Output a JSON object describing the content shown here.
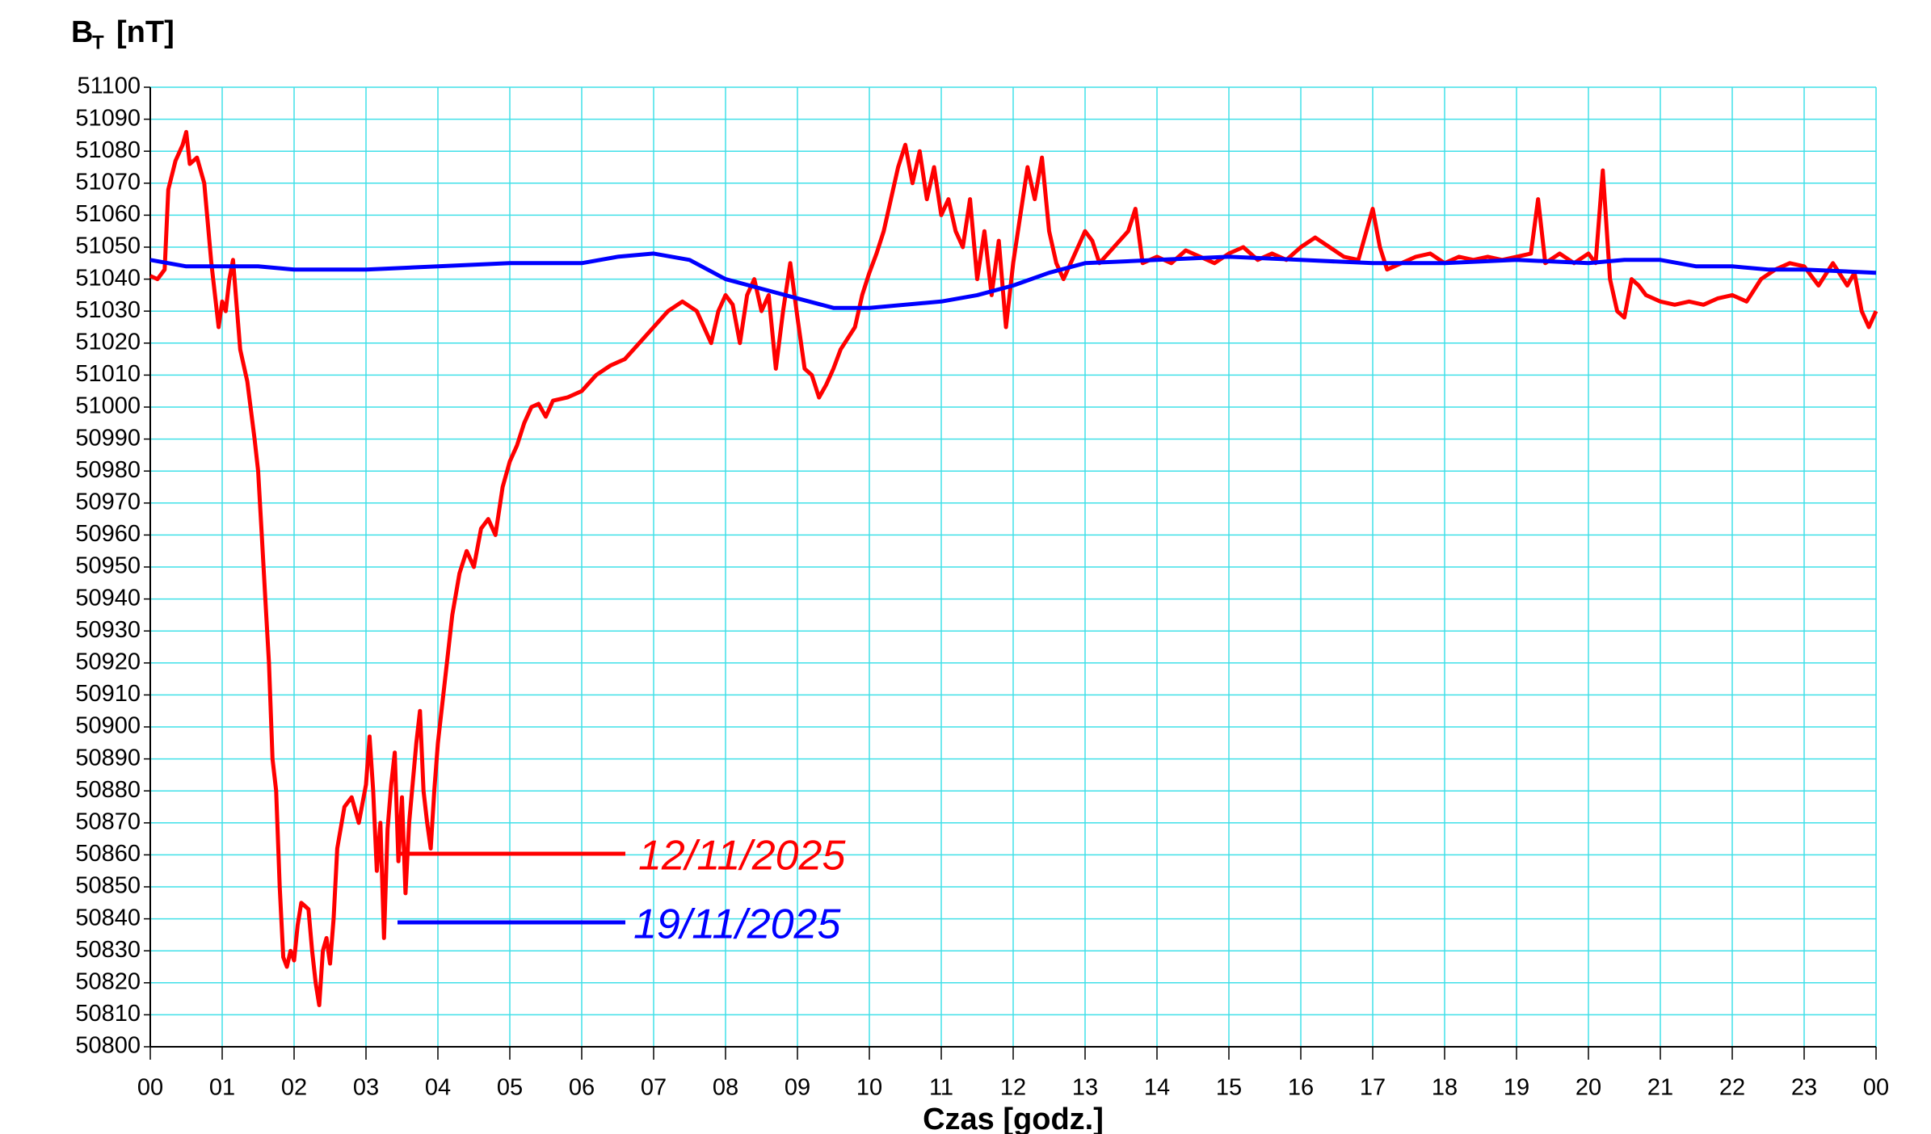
{
  "chart_data": {
    "type": "line",
    "y_label": "B",
    "y_label_subscript": "T",
    "y_label_unit": "[nT]",
    "x_label": "Czas [godz.]",
    "xlim": [
      0,
      24
    ],
    "ylim": [
      50800,
      51100
    ],
    "xticks": [
      {
        "value": 0,
        "label": "00"
      },
      {
        "value": 1,
        "label": "01"
      },
      {
        "value": 2,
        "label": "02"
      },
      {
        "value": 3,
        "label": "03"
      },
      {
        "value": 4,
        "label": "04"
      },
      {
        "value": 5,
        "label": "05"
      },
      {
        "value": 6,
        "label": "06"
      },
      {
        "value": 7,
        "label": "07"
      },
      {
        "value": 8,
        "label": "08"
      },
      {
        "value": 9,
        "label": "09"
      },
      {
        "value": 10,
        "label": "10"
      },
      {
        "value": 11,
        "label": "11"
      },
      {
        "value": 12,
        "label": "12"
      },
      {
        "value": 13,
        "label": "13"
      },
      {
        "value": 14,
        "label": "14"
      },
      {
        "value": 15,
        "label": "15"
      },
      {
        "value": 16,
        "label": "16"
      },
      {
        "value": 17,
        "label": "17"
      },
      {
        "value": 18,
        "label": "18"
      },
      {
        "value": 19,
        "label": "19"
      },
      {
        "value": 20,
        "label": "20"
      },
      {
        "value": 21,
        "label": "21"
      },
      {
        "value": 22,
        "label": "22"
      },
      {
        "value": 23,
        "label": "23"
      },
      {
        "value": 24,
        "label": "00"
      }
    ],
    "yticks": [
      50800,
      50810,
      50820,
      50830,
      50840,
      50850,
      50860,
      50870,
      50880,
      50890,
      50900,
      50910,
      50920,
      50930,
      50940,
      50950,
      50960,
      50970,
      50980,
      50990,
      51000,
      51010,
      51020,
      51030,
      51040,
      51050,
      51060,
      51070,
      51080,
      51090,
      51100
    ],
    "grid": true,
    "grid_color": "#40e0e8",
    "series": [
      {
        "name": "12/11/2025",
        "color": "#ff0000",
        "x": [
          0,
          0.1,
          0.2,
          0.25,
          0.35,
          0.45,
          0.5,
          0.55,
          0.65,
          0.75,
          0.85,
          0.95,
          1.0,
          1.05,
          1.1,
          1.15,
          1.25,
          1.35,
          1.45,
          1.5,
          1.55,
          1.6,
          1.65,
          1.7,
          1.75,
          1.8,
          1.85,
          1.9,
          1.95,
          2.0,
          2.05,
          2.1,
          2.2,
          2.25,
          2.3,
          2.35,
          2.4,
          2.45,
          2.5,
          2.55,
          2.6,
          2.7,
          2.8,
          2.9,
          3.0,
          3.05,
          3.1,
          3.15,
          3.2,
          3.25,
          3.3,
          3.35,
          3.4,
          3.45,
          3.5,
          3.55,
          3.6,
          3.7,
          3.75,
          3.8,
          3.85,
          3.9,
          3.95,
          4.0,
          4.1,
          4.2,
          4.3,
          4.4,
          4.5,
          4.6,
          4.7,
          4.8,
          4.9,
          5.0,
          5.1,
          5.2,
          5.3,
          5.4,
          5.5,
          5.6,
          5.8,
          6.0,
          6.2,
          6.4,
          6.6,
          6.8,
          7.0,
          7.2,
          7.4,
          7.6,
          7.8,
          7.9,
          8.0,
          8.1,
          8.2,
          8.3,
          8.4,
          8.5,
          8.6,
          8.7,
          8.8,
          8.9,
          9.0,
          9.1,
          9.2,
          9.3,
          9.4,
          9.5,
          9.6,
          9.8,
          9.9,
          10.0,
          10.1,
          10.2,
          10.3,
          10.4,
          10.5,
          10.6,
          10.7,
          10.8,
          10.9,
          11.0,
          11.1,
          11.2,
          11.3,
          11.4,
          11.5,
          11.6,
          11.7,
          11.8,
          11.9,
          12.0,
          12.1,
          12.2,
          12.3,
          12.4,
          12.5,
          12.6,
          12.7,
          12.8,
          12.9,
          13.0,
          13.1,
          13.2,
          13.4,
          13.6,
          13.7,
          13.8,
          14.0,
          14.2,
          14.4,
          14.6,
          14.8,
          15.0,
          15.2,
          15.4,
          15.6,
          15.8,
          16.0,
          16.2,
          16.4,
          16.6,
          16.8,
          17.0,
          17.1,
          17.2,
          17.4,
          17.6,
          17.8,
          18.0,
          18.2,
          18.4,
          18.6,
          18.8,
          19.0,
          19.2,
          19.3,
          19.4,
          19.6,
          19.8,
          20.0,
          20.1,
          20.2,
          20.3,
          20.4,
          20.5,
          20.6,
          20.7,
          20.8,
          21.0,
          21.2,
          21.4,
          21.6,
          21.8,
          22.0,
          22.2,
          22.4,
          22.6,
          22.8,
          23.0,
          23.2,
          23.4,
          23.6,
          23.7,
          23.8,
          23.9,
          24.0
        ],
        "values": [
          51041,
          51040,
          51043,
          51068,
          51077,
          51082,
          51086,
          51076,
          51078,
          51070,
          51045,
          51025,
          51033,
          51030,
          51040,
          51046,
          51018,
          51008,
          50990,
          50980,
          50960,
          50940,
          50920,
          50890,
          50880,
          50850,
          50828,
          50825,
          50830,
          50827,
          50838,
          50845,
          50843,
          50830,
          50820,
          50813,
          50830,
          50834,
          50826,
          50840,
          50862,
          50875,
          50878,
          50870,
          50882,
          50897,
          50880,
          50855,
          50870,
          50834,
          50868,
          50882,
          50892,
          50858,
          50878,
          50848,
          50870,
          50895,
          50905,
          50880,
          50870,
          50862,
          50880,
          50895,
          50915,
          50935,
          50948,
          50955,
          50950,
          50962,
          50965,
          50960,
          50975,
          50983,
          50988,
          50995,
          51000,
          51001,
          50997,
          51002,
          51003,
          51005,
          51010,
          51013,
          51015,
          51020,
          51025,
          51030,
          51033,
          51030,
          51020,
          51030,
          51035,
          51032,
          51020,
          51035,
          51040,
          51030,
          51035,
          51012,
          51030,
          51045,
          51028,
          51012,
          51010,
          51003,
          51007,
          51012,
          51018,
          51025,
          51035,
          51042,
          51048,
          51055,
          51065,
          51075,
          51082,
          51070,
          51080,
          51065,
          51075,
          51060,
          51065,
          51055,
          51050,
          51065,
          51040,
          51055,
          51035,
          51052,
          51025,
          51045,
          51060,
          51075,
          51065,
          51078,
          51055,
          51045,
          51040,
          51045,
          51050,
          51055,
          51052,
          51045,
          51050,
          51055,
          51062,
          51045,
          51047,
          51045,
          51049,
          51047,
          51045,
          51048,
          51050,
          51046,
          51048,
          51046,
          51050,
          51053,
          51050,
          51047,
          51046,
          51062,
          51050,
          51043,
          51045,
          51047,
          51048,
          51045,
          51047,
          51046,
          51047,
          51046,
          51047,
          51048,
          51065,
          51045,
          51048,
          51045,
          51048,
          51045,
          51074,
          51040,
          51030,
          51028,
          51040,
          51038,
          51035,
          51033,
          51032,
          51033,
          51032,
          51034,
          51035,
          51033,
          51040,
          51043,
          51045,
          51044,
          51038,
          51045,
          51038,
          51042,
          51030,
          51025,
          51030
        ]
      },
      {
        "name": "19/11/2025",
        "color": "#0000ff",
        "x": [
          0,
          0.5,
          1.0,
          1.5,
          2,
          3,
          4,
          5,
          6,
          6.5,
          7,
          7.5,
          8,
          8.5,
          9,
          9.5,
          10,
          11,
          11.5,
          12,
          12.5,
          13,
          14,
          15,
          16,
          17,
          18,
          19,
          20,
          20.5,
          21,
          21.5,
          22,
          22.5,
          23,
          24
        ],
        "values": [
          51046,
          51044,
          51044,
          51044,
          51043,
          51043,
          51044,
          51045,
          51045,
          51047,
          51048,
          51046,
          51040,
          51037,
          51034,
          51031,
          51031,
          51033,
          51035,
          51038,
          51042,
          51045,
          51046,
          51047,
          51046,
          51045,
          51045,
          51046,
          51045,
          51046,
          51046,
          51044,
          51044,
          51043,
          51043,
          51042
        ]
      }
    ]
  }
}
